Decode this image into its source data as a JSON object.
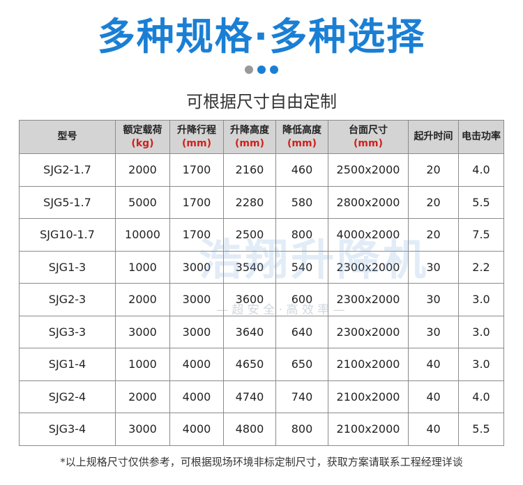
{
  "header": {
    "title": "多种规格·多种选择",
    "subtitle": "可根据尺寸自由定制"
  },
  "watermark": {
    "brand": "浩翔升降机",
    "slogan": "— 超 安 全 · 高 效 率 —"
  },
  "table": {
    "columns": [
      {
        "label": "型号"
      },
      {
        "label": "额定载荷",
        "unit": "(kg)"
      },
      {
        "label": "升降行程",
        "unit": "(mm)"
      },
      {
        "label": "升降高度",
        "unit": "(mm)"
      },
      {
        "label": "降低高度",
        "unit": "(mm)"
      },
      {
        "label": "台面尺寸",
        "unit": "(mm)"
      },
      {
        "label": "起升时间"
      },
      {
        "label": "电击功率"
      }
    ],
    "rows": [
      [
        "SJG2-1.7",
        "2000",
        "1700",
        "2160",
        "460",
        "2500x2000",
        "20",
        "4.0"
      ],
      [
        "SJG5-1.7",
        "5000",
        "1700",
        "2280",
        "580",
        "2800x2000",
        "20",
        "5.5"
      ],
      [
        "SJG10-1.7",
        "10000",
        "1700",
        "2500",
        "800",
        "4000x2000",
        "20",
        "7.5"
      ],
      [
        "SJG1-3",
        "1000",
        "3000",
        "3540",
        "540",
        "2300x2000",
        "30",
        "2.2"
      ],
      [
        "SJG2-3",
        "2000",
        "3000",
        "3600",
        "600",
        "2300x2000",
        "30",
        "3.0"
      ],
      [
        "SJG3-3",
        "3000",
        "3000",
        "3640",
        "640",
        "2300x2000",
        "30",
        "3.0"
      ],
      [
        "SJG1-4",
        "1000",
        "4000",
        "4650",
        "650",
        "2100x2000",
        "40",
        "3.0"
      ],
      [
        "SJG2-4",
        "2000",
        "4000",
        "4740",
        "740",
        "2100x2000",
        "40",
        "4.0"
      ],
      [
        "SJG3-4",
        "3000",
        "4000",
        "4800",
        "800",
        "2100x2000",
        "40",
        "5.5"
      ]
    ]
  },
  "footnote": "*以上规格尺寸仅供参考，可根据现场环境非标定制尺寸，获取方案请联系工程经理详谈"
}
